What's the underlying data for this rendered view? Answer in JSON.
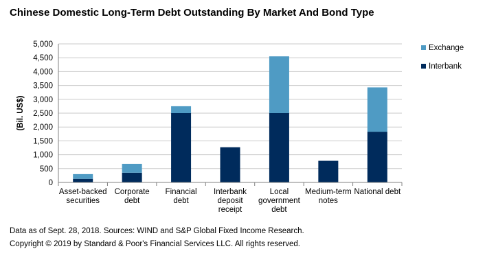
{
  "header": {
    "title": "Chinese Domestic Long-Term Debt Outstanding By Market And Bond Type"
  },
  "footer": {
    "note": "Data as of Sept. 28, 2018. Sources: WIND and S&P Global Fixed Income Research.",
    "copyright": "Copyright © 2019 by Standard & Poor's Financial Services LLC. All rights reserved."
  },
  "chart_data": {
    "type": "bar",
    "stacked": true,
    "title": "Chinese Domestic Long-Term Debt Outstanding By Market And Bond Type",
    "xlabel": "",
    "ylabel": "(Bil. US$)",
    "ylim": [
      0,
      5000
    ],
    "yticks": [
      0,
      500,
      1000,
      1500,
      2000,
      2500,
      3000,
      3500,
      4000,
      4500,
      5000
    ],
    "ytick_labels": [
      "0",
      "500",
      "1,000",
      "1,500",
      "2,000",
      "2,500",
      "3,000",
      "3,500",
      "4,000",
      "4,500",
      "5,000"
    ],
    "grid": true,
    "legend_position": "right",
    "categories": [
      [
        "Asset-backed",
        "securities"
      ],
      [
        "Corporate",
        "debt"
      ],
      [
        "Financial",
        "debt"
      ],
      [
        "Interbank",
        "deposit",
        "receipt"
      ],
      [
        "Local",
        "government",
        "debt"
      ],
      [
        "Medium-term",
        "notes"
      ],
      [
        "National debt"
      ]
    ],
    "series": [
      {
        "name": "Interbank",
        "color": "#002b5c",
        "values": [
          130,
          350,
          2500,
          1270,
          2500,
          780,
          1830
        ]
      },
      {
        "name": "Exchange",
        "color": "#4f9bc4",
        "values": [
          170,
          320,
          250,
          0,
          2050,
          0,
          1600
        ]
      }
    ],
    "legend": [
      {
        "name": "Exchange",
        "color": "#4f9bc4"
      },
      {
        "name": "Interbank",
        "color": "#002b5c"
      }
    ]
  }
}
